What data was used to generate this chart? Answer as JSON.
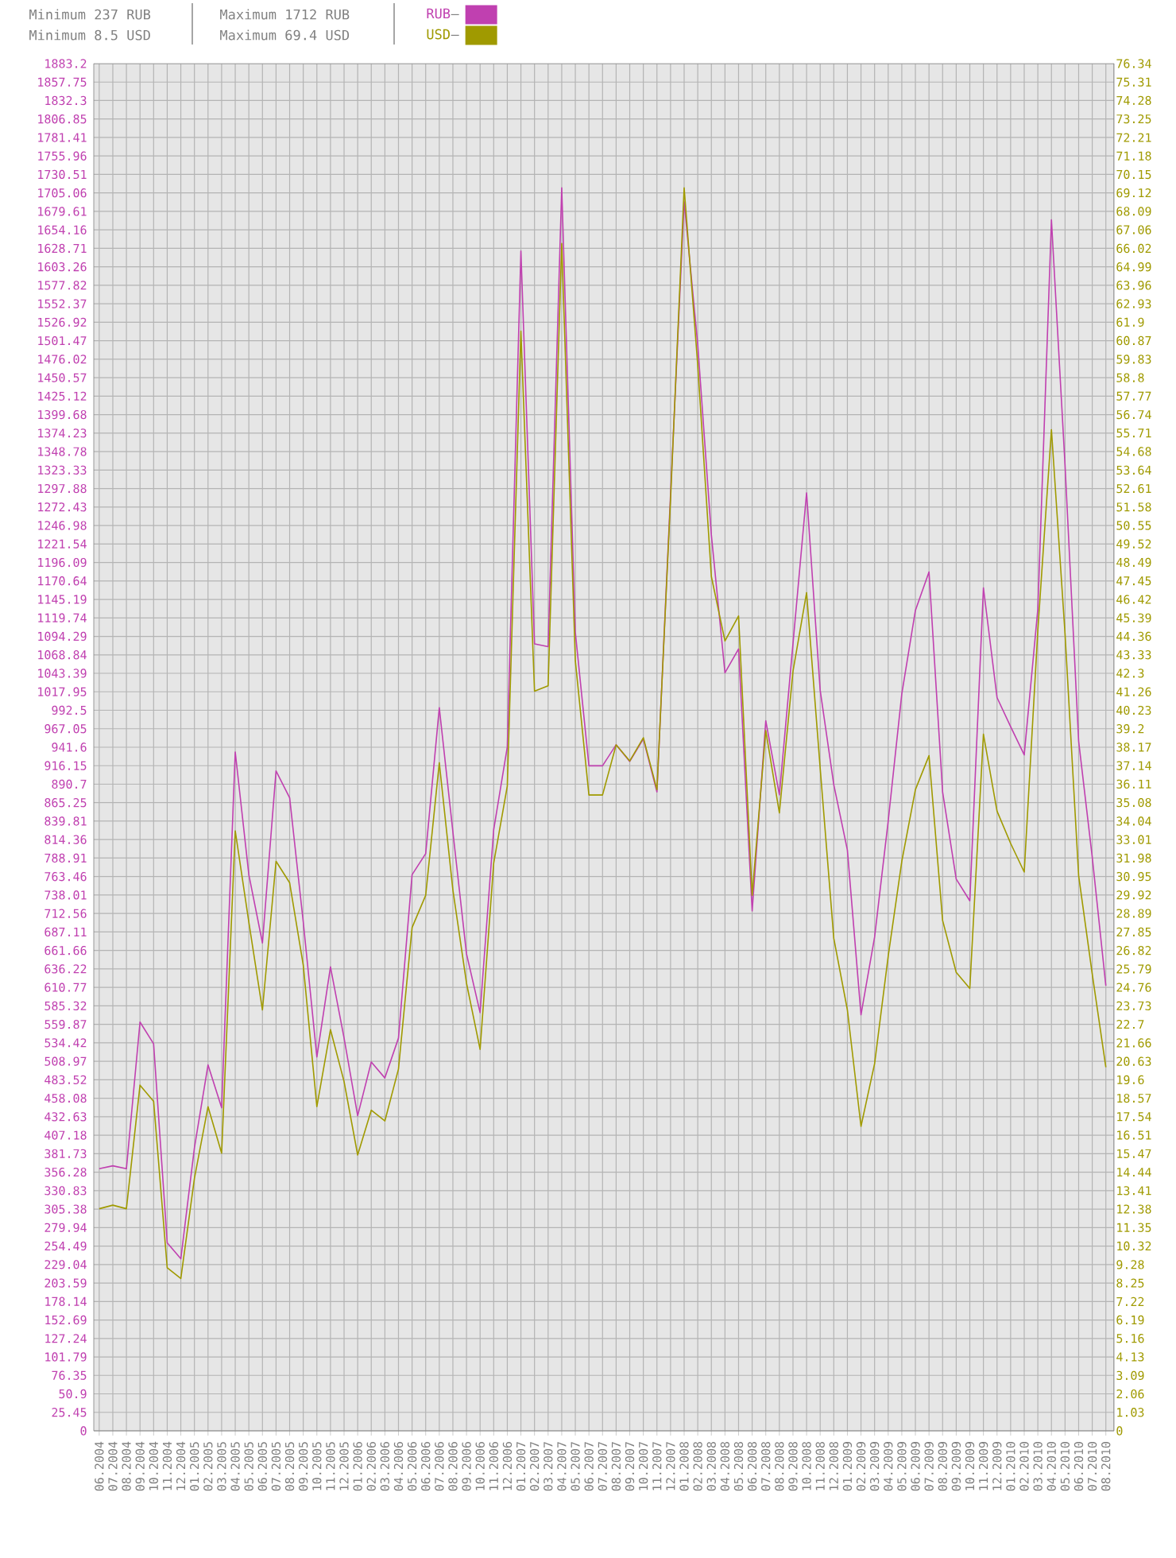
{
  "chart_data": {
    "type": "line",
    "annotations": [
      "Minimum 237 RUB",
      "Minimum 8.5 USD",
      "Maximum 1712 RUB",
      "Maximum 69.4 USD"
    ],
    "categories": [
      "06.2004",
      "07.2004",
      "08.2004",
      "09.2004",
      "10.2004",
      "11.2004",
      "12.2004",
      "01.2005",
      "02.2005",
      "03.2005",
      "04.2005",
      "05.2005",
      "06.2005",
      "07.2005",
      "08.2005",
      "09.2005",
      "10.2005",
      "11.2005",
      "12.2005",
      "01.2006",
      "02.2006",
      "03.2006",
      "04.2006",
      "05.2006",
      "06.2006",
      "07.2006",
      "08.2006",
      "09.2006",
      "10.2006",
      "11.2006",
      "12.2006",
      "01.2007",
      "02.2007",
      "03.2007",
      "04.2007",
      "05.2007",
      "06.2007",
      "07.2007",
      "08.2007",
      "09.2007",
      "10.2007",
      "11.2007",
      "12.2007",
      "01.2008",
      "02.2008",
      "03.2008",
      "04.2008",
      "05.2008",
      "06.2008",
      "07.2008",
      "08.2008",
      "09.2008",
      "10.2008",
      "11.2008",
      "12.2008",
      "01.2009",
      "02.2009",
      "03.2009",
      "04.2009",
      "05.2009",
      "06.2009",
      "07.2009",
      "08.2009",
      "09.2009",
      "10.2009",
      "11.2009",
      "12.2009",
      "01.2010",
      "02.2010",
      "03.2010",
      "04.2010",
      "05.2010",
      "06.2010",
      "07.2010",
      "08.2010"
    ],
    "series": [
      {
        "name": "RUB",
        "color": "#c040b0",
        "axis": "y",
        "values": [
          361,
          365,
          361,
          563,
          533,
          259,
          237,
          390,
          504,
          445,
          935,
          766,
          672,
          909,
          872,
          701,
          515,
          639,
          541,
          434,
          508,
          486,
          541,
          766,
          795,
          996,
          825,
          657,
          576,
          828,
          942,
          1625,
          1084,
          1080,
          1712,
          1100,
          916,
          916,
          945,
          922,
          953,
          880,
          1290,
          1693,
          1496,
          1234,
          1044,
          1077,
          716,
          978,
          876,
          1084,
          1292,
          1020,
          890,
          800,
          573,
          680,
          840,
          1015,
          1130,
          1183,
          880,
          760,
          730,
          1161,
          1010,
          970,
          931,
          1132,
          1668,
          1330,
          950,
          790,
          613
        ]
      },
      {
        "name": "USD",
        "color": "#a09a00",
        "axis": "y2",
        "values": [
          12.4,
          12.6,
          12.4,
          19.3,
          18.4,
          9.1,
          8.5,
          14.1,
          18.1,
          15.5,
          33.5,
          28.4,
          23.5,
          31.8,
          30.6,
          26.0,
          18.1,
          22.4,
          19.5,
          15.4,
          17.9,
          17.3,
          20.2,
          28.1,
          29.9,
          37.3,
          30.2,
          25.0,
          21.3,
          31.7,
          36.0,
          61.4,
          41.3,
          41.6,
          66.3,
          43.0,
          35.5,
          35.5,
          38.3,
          37.4,
          38.7,
          35.8,
          52.0,
          69.4,
          59.5,
          47.7,
          44.1,
          45.5,
          29.9,
          39.1,
          34.5,
          42.4,
          46.8,
          37.0,
          27.5,
          23.5,
          17.0,
          20.5,
          26.5,
          31.8,
          35.8,
          37.7,
          28.5,
          25.6,
          24.7,
          38.9,
          34.6,
          32.8,
          31.2,
          44.7,
          55.9,
          44.5,
          31.0,
          25.5,
          20.3
        ]
      }
    ],
    "ylim": [
      0,
      1883.2
    ],
    "yticks": [
      0,
      25.45,
      50.9,
      76.35,
      101.79,
      127.24,
      152.69,
      178.14,
      203.59,
      229.04,
      254.49,
      279.94,
      305.38,
      330.83,
      356.28,
      381.73,
      407.18,
      432.63,
      458.08,
      483.52,
      508.97,
      534.42,
      559.87,
      585.32,
      610.77,
      636.22,
      661.66,
      687.11,
      712.56,
      738.01,
      763.46,
      788.91,
      814.36,
      839.81,
      865.25,
      890.7,
      916.15,
      941.6,
      967.05,
      992.5,
      1017.95,
      1043.39,
      1068.84,
      1094.29,
      1119.74,
      1145.19,
      1170.64,
      1196.09,
      1221.54,
      1246.98,
      1272.43,
      1297.88,
      1323.33,
      1348.78,
      1374.23,
      1399.68,
      1425.12,
      1450.57,
      1476.02,
      1501.47,
      1526.92,
      1552.37,
      1577.82,
      1603.26,
      1628.71,
      1654.16,
      1679.61,
      1705.06,
      1730.51,
      1755.96,
      1781.41,
      1806.85,
      1832.3,
      1857.75,
      1883.2
    ],
    "y2lim": [
      0,
      76.34
    ],
    "y2ticks": [
      0,
      1.03,
      2.06,
      3.09,
      4.13,
      5.16,
      6.19,
      7.22,
      8.25,
      9.28,
      10.32,
      11.35,
      12.38,
      13.41,
      14.44,
      15.47,
      16.51,
      17.54,
      18.57,
      19.6,
      20.63,
      21.66,
      22.7,
      23.73,
      24.76,
      25.79,
      26.82,
      27.85,
      28.89,
      29.92,
      30.95,
      31.98,
      33.01,
      34.04,
      35.08,
      36.11,
      37.14,
      38.17,
      39.2,
      40.23,
      41.26,
      42.3,
      43.33,
      44.36,
      45.39,
      46.42,
      47.45,
      48.49,
      49.52,
      50.55,
      51.58,
      52.61,
      53.64,
      54.68,
      55.71,
      56.74,
      57.77,
      58.8,
      59.83,
      60.87,
      61.9,
      62.93,
      63.96,
      64.99,
      66.02,
      67.06,
      68.09,
      69.12,
      70.15,
      71.18,
      72.21,
      73.25,
      74.28,
      75.31,
      76.34
    ],
    "grid": true,
    "legend": "top"
  }
}
